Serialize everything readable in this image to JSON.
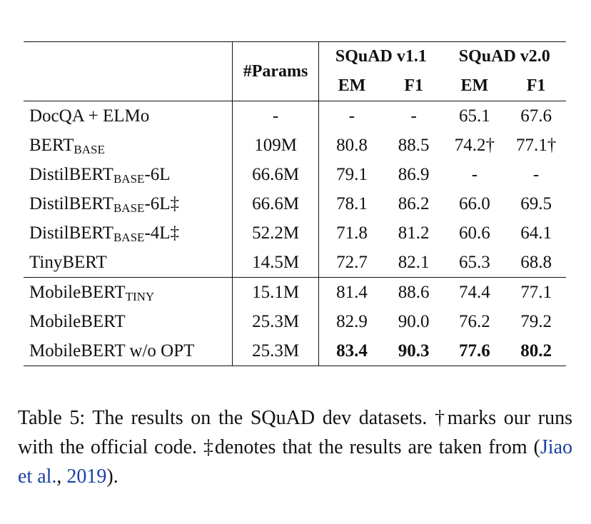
{
  "table": {
    "header": {
      "params": "#Params",
      "squad_v11": "SQuAD v1.1",
      "squad_v20": "SQuAD v2.0",
      "em": "EM",
      "f1": "F1"
    },
    "rows": [
      {
        "model": "DocQA + ELMo",
        "model_sub": "",
        "model_suffix": "",
        "params": "-",
        "v11_em": "-",
        "v11_f1": "-",
        "v20_em": "65.1",
        "v20_f1": "67.6"
      },
      {
        "model": "BERT",
        "model_sub": "BASE",
        "model_suffix": "",
        "params": "109M",
        "v11_em": "80.8",
        "v11_f1": "88.5",
        "v20_em": "74.2†",
        "v20_f1": "77.1†"
      },
      {
        "model": "DistilBERT",
        "model_sub": "BASE",
        "model_suffix": "-6L",
        "params": "66.6M",
        "v11_em": "79.1",
        "v11_f1": "86.9",
        "v20_em": "-",
        "v20_f1": "-"
      },
      {
        "model": "DistilBERT",
        "model_sub": "BASE",
        "model_suffix": "-6L‡",
        "params": "66.6M",
        "v11_em": "78.1",
        "v11_f1": "86.2",
        "v20_em": "66.0",
        "v20_f1": "69.5"
      },
      {
        "model": "DistilBERT",
        "model_sub": "BASE",
        "model_suffix": "-4L‡",
        "params": "52.2M",
        "v11_em": "71.8",
        "v11_f1": "81.2",
        "v20_em": "60.6",
        "v20_f1": "64.1"
      },
      {
        "model": "TinyBERT",
        "model_sub": "",
        "model_suffix": "",
        "params": "14.5M",
        "v11_em": "72.7",
        "v11_f1": "82.1",
        "v20_em": "65.3",
        "v20_f1": "68.8"
      },
      {
        "model": "MobileBERT",
        "model_sub": "TINY",
        "model_suffix": "",
        "params": "15.1M",
        "v11_em": "81.4",
        "v11_f1": "88.6",
        "v20_em": "74.4",
        "v20_f1": "77.1"
      },
      {
        "model": "MobileBERT",
        "model_sub": "",
        "model_suffix": "",
        "params": "25.3M",
        "v11_em": "82.9",
        "v11_f1": "90.0",
        "v20_em": "76.2",
        "v20_f1": "79.2"
      },
      {
        "model": "MobileBERT w/o OPT",
        "model_sub": "",
        "model_suffix": "",
        "params": "25.3M",
        "v11_em": "83.4",
        "v11_f1": "90.3",
        "v20_em": "77.6",
        "v20_f1": "80.2"
      }
    ]
  },
  "caption": {
    "label": "Table 5:",
    "text_1": " The results on the SQuAD dev datasets. †marks our runs with the official code. ‡denotes that the results are taken from (",
    "cite_author": "Jiao et al.",
    "cite_sep": ", ",
    "cite_year": "2019",
    "text_2": ")."
  }
}
